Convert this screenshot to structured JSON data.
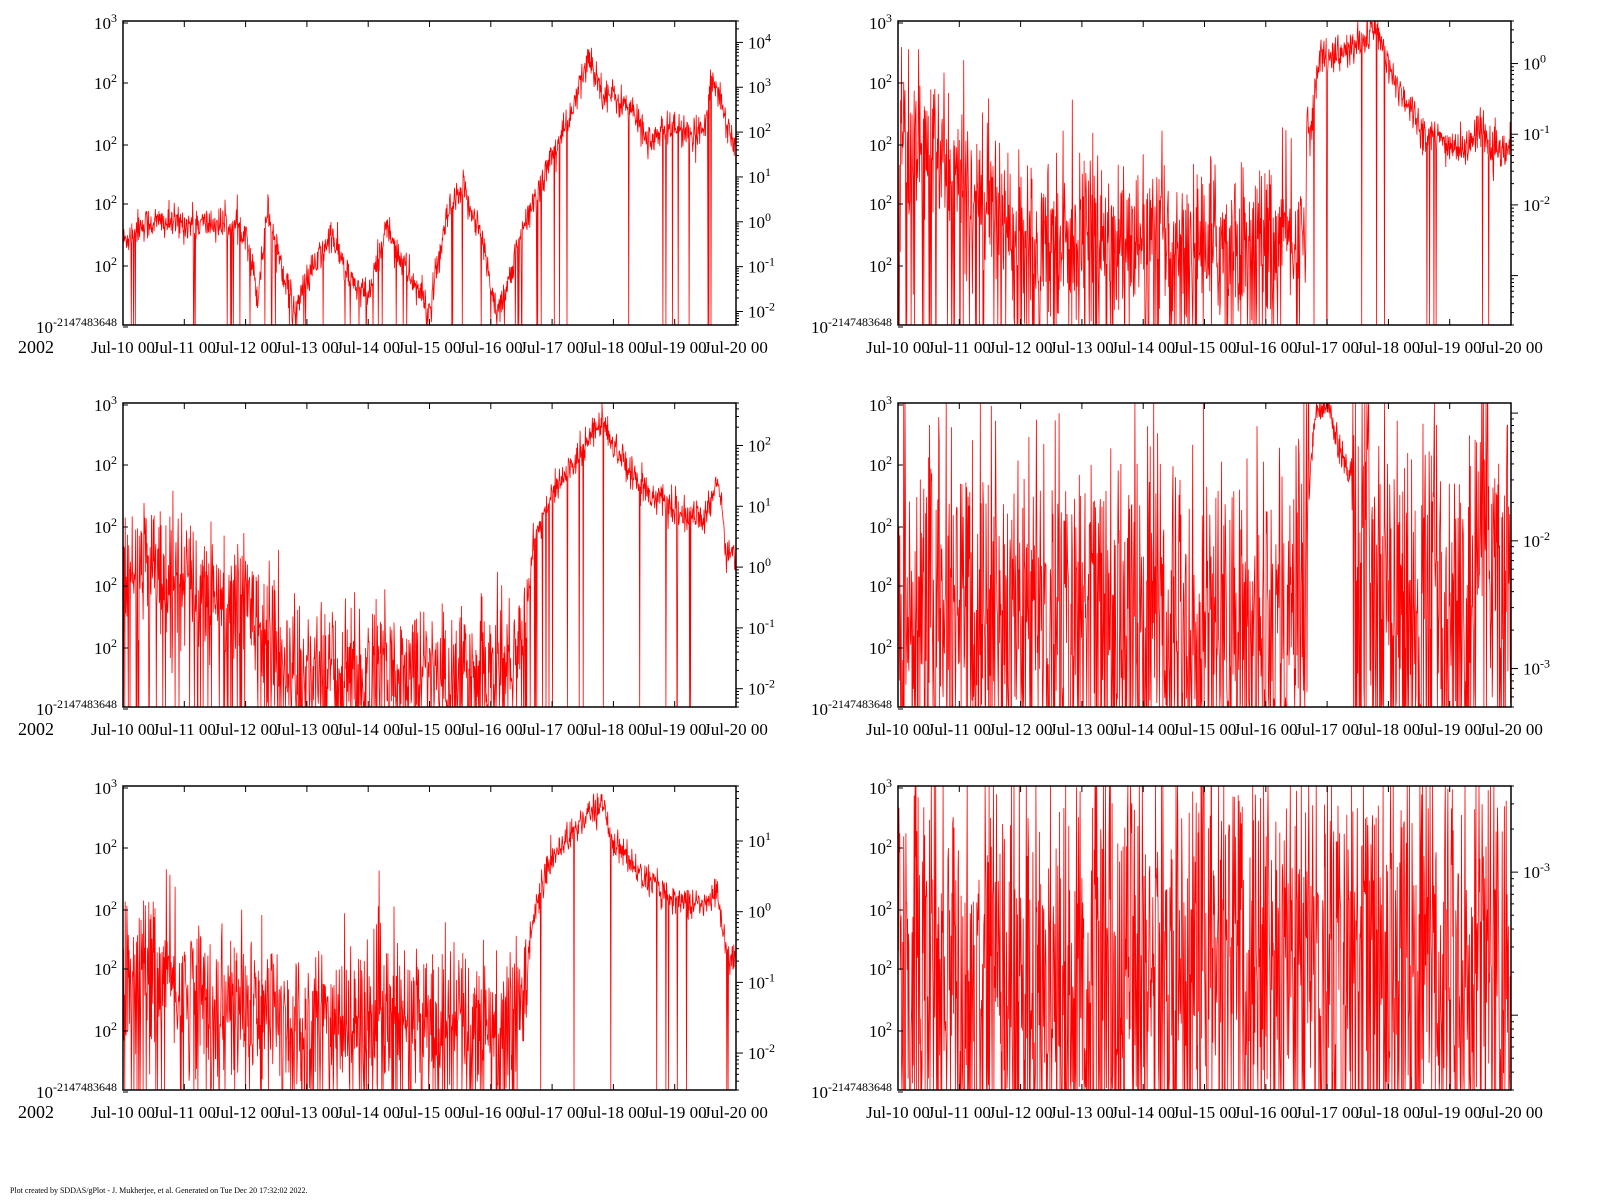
{
  "year_label": "2002",
  "footer": "Plot created by SDDAS/gPlot - J. Mukherjee, et al.  Generated on Tue Dec 20 17:32:02 2022.",
  "x_axis": {
    "tick_labels": [
      "Jul-10 00",
      "Jul-11 00",
      "Jul-12 00",
      "Jul-13 00",
      "Jul-14 00",
      "Jul-15 00",
      "Jul-16 00",
      "Jul-17 00",
      "Jul-18 00",
      "Jul-19 00",
      "Jul-20 00"
    ],
    "range": [
      "2002-07-10 00:00",
      "2002-07-20 00:00"
    ]
  },
  "colors": {
    "trace": "#ff0000",
    "axis": "#000000",
    "background": "#ffffff"
  },
  "chart_data": [
    {
      "type": "line",
      "panel": "row1-left",
      "left_axis": {
        "labels": [
          "10^3",
          "10^2",
          "10^2",
          "10^2",
          "10^2",
          "10^-2147483648"
        ]
      },
      "right_axis": {
        "scale": "log",
        "ylim": [
          0.005,
          30000
        ],
        "tick_exponents": [
          4,
          3,
          2,
          1,
          0,
          -1,
          -2
        ]
      },
      "x_days": [
        0,
        0.25,
        0.5,
        1,
        1.5,
        2,
        2.2,
        2.35,
        2.6,
        2.8,
        3,
        3.4,
        3.7,
        4,
        4.3,
        4.6,
        5,
        5.3,
        5.55,
        5.8,
        6.1,
        6.3,
        6.5,
        6.7,
        7,
        7.3,
        7.6,
        7.8,
        8,
        8.3,
        8.6,
        9,
        9.3,
        9.5,
        9.6,
        9.75,
        9.85,
        10
      ],
      "values": [
        0.35,
        0.8,
        1.0,
        0.9,
        0.9,
        0.7,
        0.02,
        2.0,
        0.1,
        0.01,
        0.05,
        0.5,
        0.05,
        0.02,
        0.8,
        0.1,
        0.01,
        1.5,
        5.0,
        0.8,
        0.01,
        0.05,
        0.5,
        3.0,
        30,
        200,
        5000,
        900,
        600,
        300,
        60,
        150,
        60,
        200,
        1500,
        600,
        150,
        50
      ],
      "noise": 0.35
    },
    {
      "type": "line",
      "panel": "row1-right",
      "left_axis": {
        "labels": [
          "10^3",
          "10^2",
          "10^2",
          "10^2",
          "10^2",
          "10^-2147483648"
        ]
      },
      "right_axis": {
        "scale": "log",
        "ylim": [
          0.0002,
          4
        ],
        "tick_exponents": [
          0,
          -1,
          -2
        ]
      },
      "x_days": [
        0,
        0.3,
        0.6,
        1,
        1.5,
        2,
        3,
        4,
        5,
        6,
        6.6,
        6.7,
        6.9,
        7.2,
        7.6,
        7.8,
        8,
        8.3,
        8.6,
        9,
        9.3,
        9.5,
        9.7,
        10
      ],
      "values": [
        0.08,
        0.06,
        0.05,
        0.02,
        0.01,
        0.005,
        0.004,
        0.003,
        0.003,
        0.003,
        0.004,
        0.08,
        1.5,
        1.3,
        2.0,
        3.5,
        0.8,
        0.3,
        0.1,
        0.07,
        0.06,
        0.15,
        0.05,
        0.06
      ],
      "noise_before": 1.0,
      "noise_after": 0.25,
      "noise_switch_day": 6.7
    },
    {
      "type": "line",
      "panel": "row2-left",
      "left_axis": {
        "labels": [
          "10^3",
          "10^2",
          "10^2",
          "10^2",
          "10^2",
          "10^-2147483648"
        ]
      },
      "right_axis": {
        "scale": "log",
        "ylim": [
          0.005,
          500
        ],
        "tick_exponents": [
          2,
          1,
          0,
          -1,
          -2
        ]
      },
      "x_days": [
        0,
        0.4,
        1,
        1.5,
        2,
        2.2,
        2.5,
        3,
        4,
        5,
        6,
        6.5,
        6.7,
        7,
        7.5,
        7.8,
        8,
        8.5,
        9,
        9.5,
        9.7,
        9.85,
        10
      ],
      "values": [
        0.5,
        1.3,
        0.6,
        0.4,
        0.3,
        0.2,
        0.03,
        0.02,
        0.02,
        0.02,
        0.02,
        0.05,
        3.0,
        15,
        90,
        300,
        100,
        20,
        8,
        6,
        30,
        1.5,
        2.0
      ],
      "noise_before": 1.0,
      "noise_after": 0.25,
      "noise_switch_day": 6.6
    },
    {
      "type": "line",
      "panel": "row2-right",
      "left_axis": {
        "labels": [
          "10^3",
          "10^2",
          "10^2",
          "10^2",
          "10^2",
          "10^-2147483648"
        ]
      },
      "right_axis": {
        "scale": "log",
        "ylim": [
          0.0005,
          0.12
        ],
        "tick_exponents": [
          -2,
          -3
        ]
      },
      "x_days": [
        0,
        1,
        2,
        3,
        4,
        5,
        6,
        6.6,
        6.8,
        7,
        7.2,
        7.5,
        7.8,
        8,
        8.5,
        9,
        9.4,
        9.5,
        9.7,
        10
      ],
      "values": [
        0.003,
        0.003,
        0.003,
        0.003,
        0.003,
        0.003,
        0.003,
        0.004,
        0.08,
        0.1,
        0.04,
        0.02,
        0.01,
        0.006,
        0.004,
        0.004,
        0.005,
        0.03,
        0.01,
        0.008
      ],
      "noise": 1.2,
      "gap": [
        6.7,
        7.4
      ]
    },
    {
      "type": "line",
      "panel": "row3-left",
      "left_axis": {
        "labels": [
          "10^3",
          "10^2",
          "10^2",
          "10^2",
          "10^2",
          "10^-2147483648"
        ]
      },
      "right_axis": {
        "scale": "log",
        "ylim": [
          0.003,
          60
        ],
        "tick_exponents": [
          1,
          0,
          -1,
          -2
        ]
      },
      "x_days": [
        0,
        0.4,
        1,
        1.5,
        2,
        3,
        4,
        5,
        6,
        6.5,
        6.7,
        7,
        7.5,
        7.8,
        8,
        8.5,
        9,
        9.5,
        9.7,
        9.85,
        10
      ],
      "values": [
        0.1,
        0.15,
        0.08,
        0.05,
        0.04,
        0.03,
        0.03,
        0.03,
        0.03,
        0.04,
        1.0,
        6.0,
        20,
        35,
        10,
        3.0,
        1.5,
        1.2,
        2.0,
        0.25,
        0.2
      ],
      "noise_before": 1.0,
      "noise_after": 0.2,
      "noise_switch_day": 6.6
    },
    {
      "type": "line",
      "panel": "row3-right",
      "left_axis": {
        "labels": [
          "10^3",
          "10^2",
          "10^2",
          "10^2",
          "10^2",
          "10^-2147483648"
        ]
      },
      "right_axis": {
        "scale": "log",
        "ylim": [
          3e-05,
          0.004
        ],
        "tick_exponents": [
          -3
        ]
      },
      "x_days": [
        0,
        2,
        4,
        6,
        8,
        9,
        9.5,
        10
      ],
      "values": [
        0.0003,
        0.0003,
        0.0003,
        0.0003,
        0.0003,
        0.0003,
        0.0005,
        0.0003
      ],
      "noise": 1.3
    }
  ]
}
